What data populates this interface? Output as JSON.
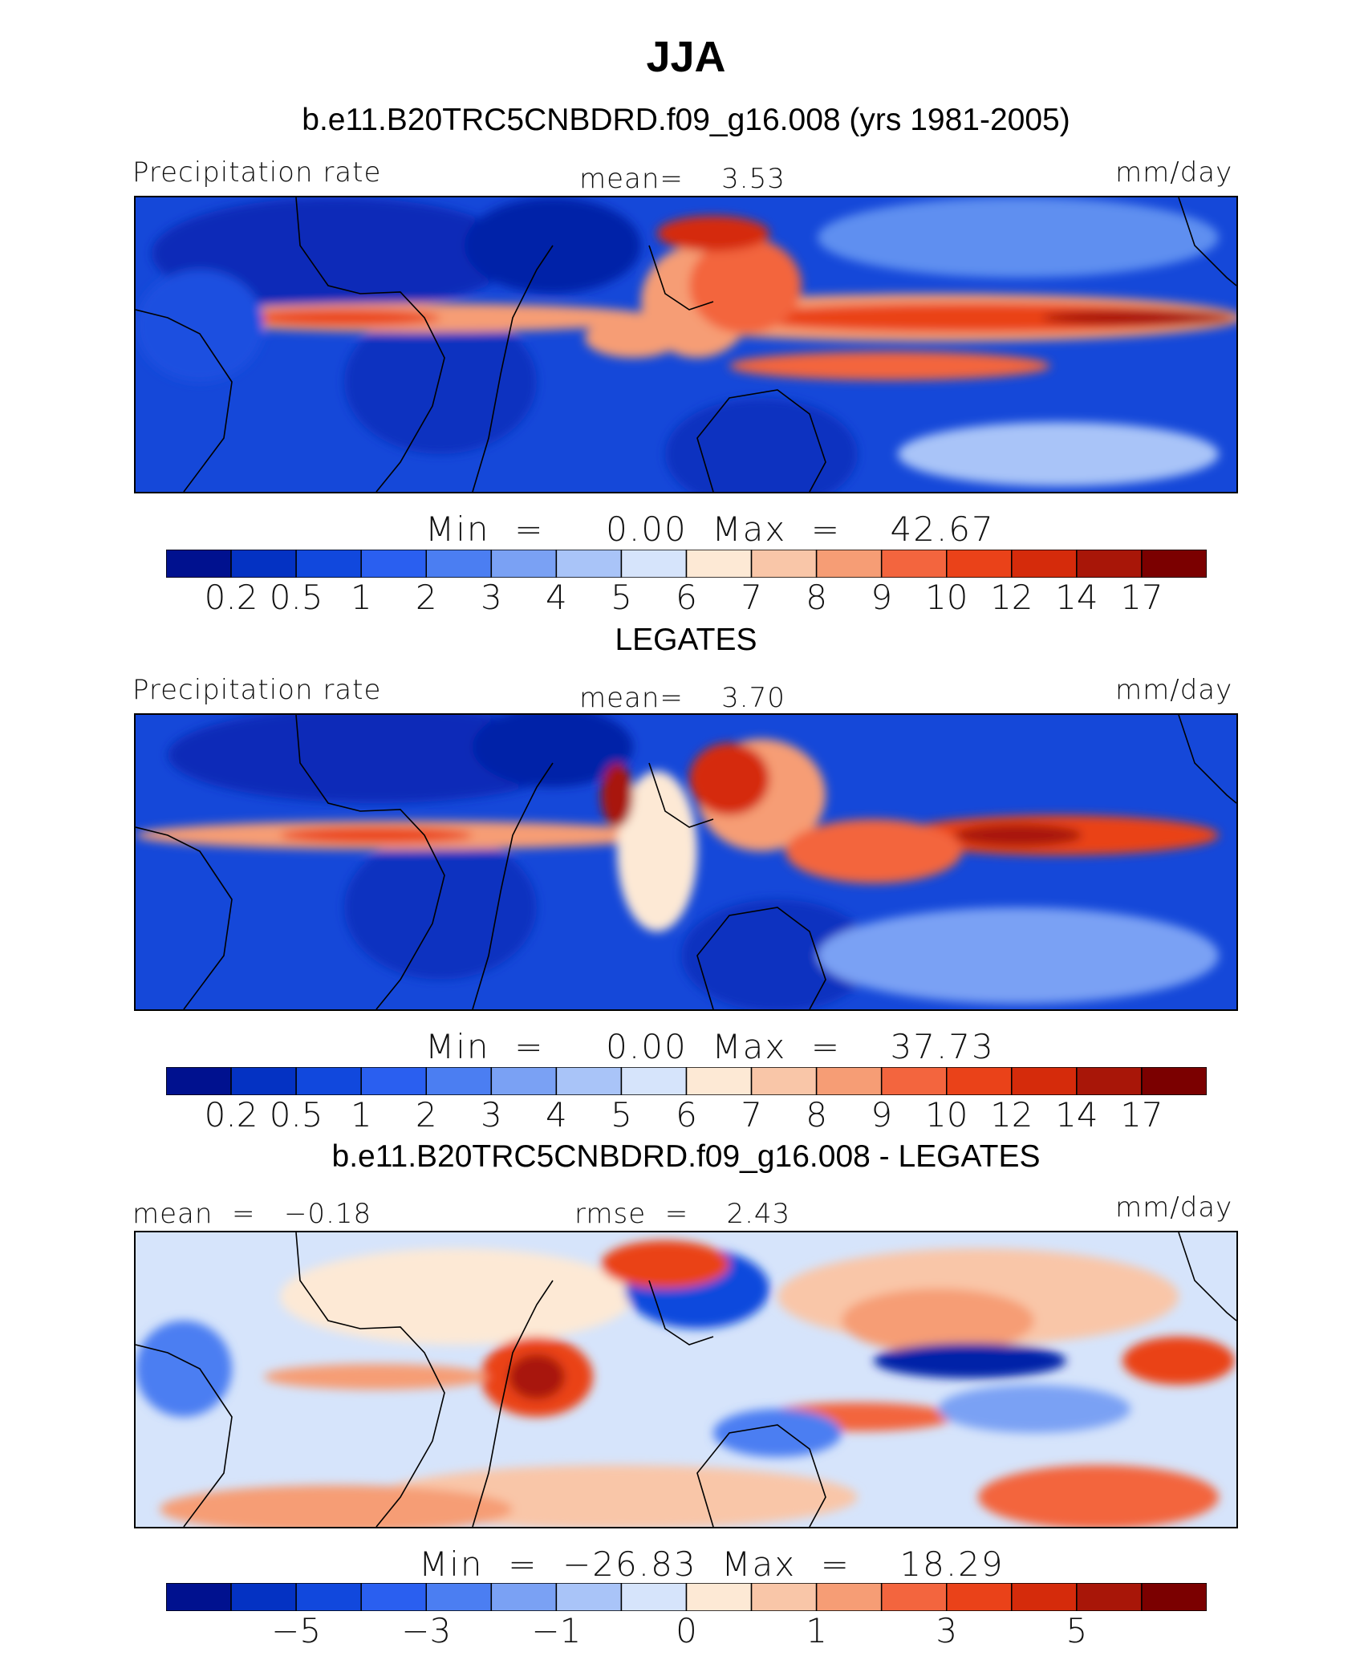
{
  "chart_data": [
    {
      "type": "heatmap",
      "title": "JJA",
      "subtitle": "b.e11.B20TRC5CNBDRD.f09_g16.008 (yrs 1981-2005)",
      "left_label": "Precipitation rate",
      "center_label": "mean=    3.53",
      "units": "mm/day",
      "min_max": "Min  =     0.00  Max  =    42.67",
      "mean": 3.53,
      "min": 0.0,
      "max": 42.67,
      "colorbar_ticks": [
        "0.2",
        "0.5",
        "1",
        "2",
        "3",
        "4",
        "5",
        "6",
        "7",
        "8",
        "9",
        "10",
        "12",
        "14",
        "17"
      ],
      "colors": [
        "#00118f",
        "#0432c3",
        "#1148dd",
        "#2a5ff0",
        "#4b7ef2",
        "#7aa1f4",
        "#a9c4f8",
        "#d6e4fb",
        "#fde9d5",
        "#f9c6a8",
        "#f69d75",
        "#f3653e",
        "#ea4219",
        "#d52b0b",
        "#a81608",
        "#7b0000"
      ]
    },
    {
      "type": "heatmap",
      "title": "LEGATES",
      "left_label": "Precipitation rate",
      "center_label": "mean=    3.70",
      "units": "mm/day",
      "min_max": "Min  =     0.00  Max  =    37.73",
      "mean": 3.7,
      "min": 0.0,
      "max": 37.73,
      "colorbar_ticks": [
        "0.2",
        "0.5",
        "1",
        "2",
        "3",
        "4",
        "5",
        "6",
        "7",
        "8",
        "9",
        "10",
        "12",
        "14",
        "17"
      ]
    },
    {
      "type": "heatmap",
      "title": "b.e11.B20TRC5CNBDRD.f09_g16.008 - LEGATES",
      "left_label": "mean  =   −0.18",
      "center_label": "rmse  =    2.43",
      "units": "mm/day",
      "min_max": "Min  =  −26.83  Max  =    18.29",
      "mean": -0.18,
      "rmse": 2.43,
      "min": -26.83,
      "max": 18.29,
      "colorbar_ticks": [
        "−5",
        "−3",
        "−1",
        "0",
        "1",
        "3",
        "5"
      ],
      "colorbar_tick_positions": [
        2,
        4,
        6,
        8,
        10,
        12,
        14
      ]
    }
  ]
}
